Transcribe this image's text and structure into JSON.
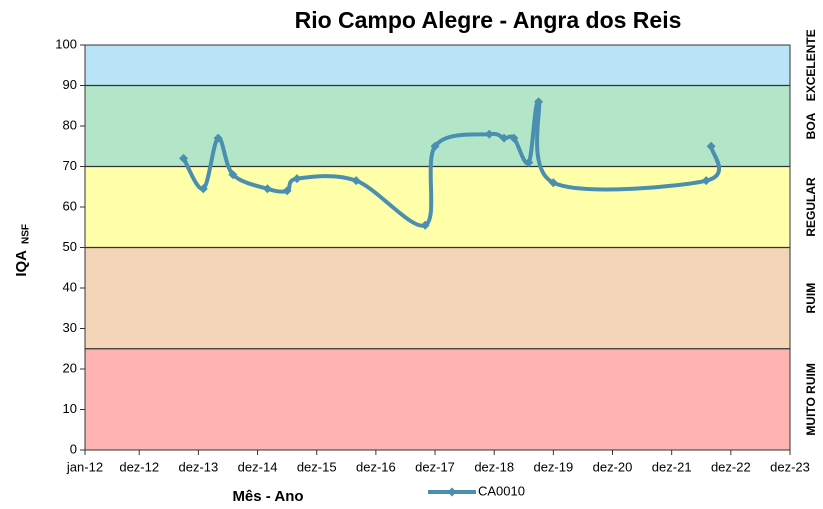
{
  "chart_data": {
    "type": "line",
    "title": "Rio Campo Alegre - Angra dos Reis",
    "y_label": "IQA",
    "y_label_subscript": "NSF",
    "x_label": "Mês - Ano",
    "ylim": [
      0,
      100
    ],
    "yticks": [
      0,
      10,
      20,
      30,
      40,
      50,
      60,
      70,
      80,
      90,
      100
    ],
    "xlim": [
      "2012-01",
      "2023-12"
    ],
    "xticks": [
      {
        "value": "2012-01",
        "label": "jan-12"
      },
      {
        "value": "2012-12",
        "label": "dez-12"
      },
      {
        "value": "2013-12",
        "label": "dez-13"
      },
      {
        "value": "2014-12",
        "label": "dez-14"
      },
      {
        "value": "2015-12",
        "label": "dez-15"
      },
      {
        "value": "2016-12",
        "label": "dez-16"
      },
      {
        "value": "2017-12",
        "label": "dez-17"
      },
      {
        "value": "2018-12",
        "label": "dez-18"
      },
      {
        "value": "2019-12",
        "label": "dez-19"
      },
      {
        "value": "2020-12",
        "label": "dez-20"
      },
      {
        "value": "2021-12",
        "label": "dez-21"
      },
      {
        "value": "2022-12",
        "label": "dez-22"
      },
      {
        "value": "2023-12",
        "label": "dez-23"
      }
    ],
    "bands": [
      {
        "label": "MUITO RUIM",
        "from": 0,
        "to": 25,
        "color": "#ffb3b3"
      },
      {
        "label": "RUIM",
        "from": 25,
        "to": 50,
        "color": "#f5d5b8"
      },
      {
        "label": "REGULAR",
        "from": 50,
        "to": 70,
        "color": "#ffffaa"
      },
      {
        "label": "BOA",
        "from": 70,
        "to": 90,
        "color": "#b3e6c8"
      },
      {
        "label": "EXCELENTE",
        "from": 90,
        "to": 100,
        "color": "#b9e4f7"
      }
    ],
    "series": [
      {
        "name": "CA0010",
        "color": "#4a8fb0",
        "x": [
          "2013-09",
          "2014-01",
          "2014-04",
          "2014-07",
          "2015-02",
          "2015-06",
          "2015-08",
          "2016-08",
          "2017-10",
          "2017-12",
          "2018-11",
          "2019-02",
          "2019-04",
          "2019-07",
          "2019-09",
          "2019-12",
          "2022-07",
          "2022-08"
        ],
        "values": [
          72,
          64.5,
          77,
          68,
          64.5,
          64,
          67,
          66.5,
          55.5,
          75,
          78,
          77,
          77,
          71,
          86,
          66,
          66.5,
          75
        ]
      }
    ]
  }
}
